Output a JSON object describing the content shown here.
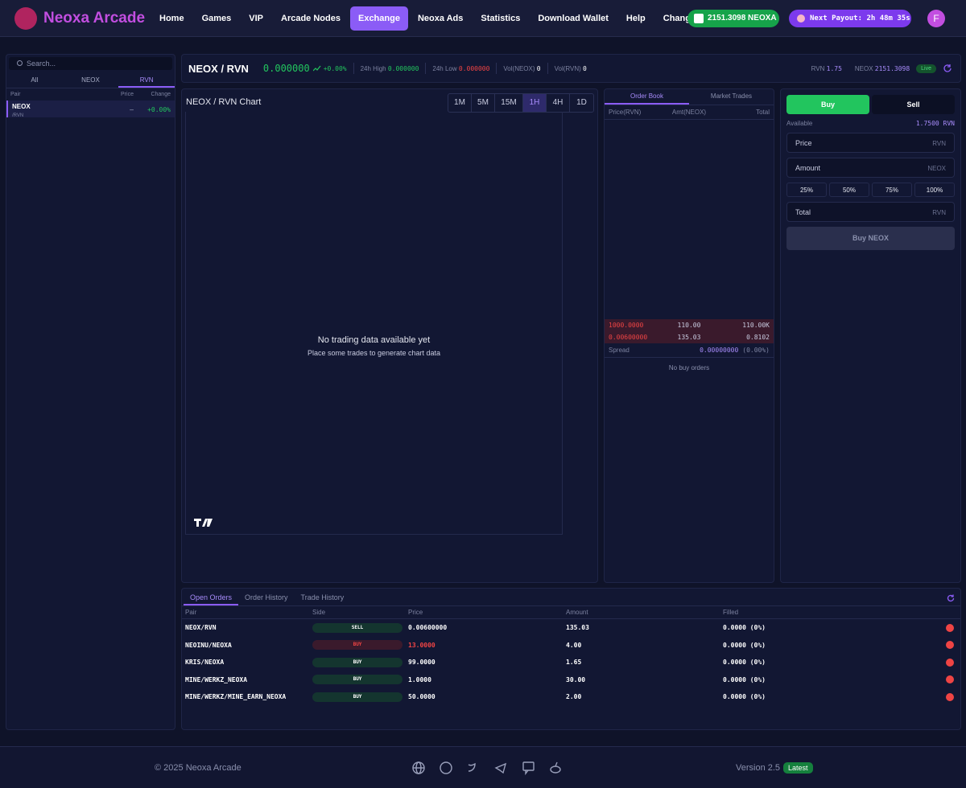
{
  "nav": {
    "brand": "Neoxa Arcade",
    "links": [
      "Home",
      "Games",
      "VIP",
      "Arcade Nodes",
      "Exchange",
      "Neoxa Ads",
      "Statistics",
      "Download Wallet",
      "Help",
      "Changelog"
    ],
    "balance": "2151.3098 NEOXA",
    "payout_label": "Next Payout:",
    "payout_time": "2h 48m 35s",
    "avatar": "F"
  },
  "sidebar": {
    "search_placeholder": "Search...",
    "tabs": [
      "All",
      "NEOX",
      "RVN"
    ],
    "columns": [
      "Pair",
      "Price",
      "Change"
    ],
    "pairs": [
      {
        "base": "NEOX",
        "quote": "/RVN",
        "price": "–",
        "change": "+0.00%"
      }
    ]
  },
  "ticker": {
    "pair": "NEOX / RVN",
    "price": "0.000000",
    "change": "+0.00%",
    "high_label": "24h High",
    "high": "0.000000",
    "low_label": "24h Low",
    "low": "0.000000",
    "vol_neox_label": "Vol(NEOX)",
    "vol_neox": "0",
    "vol_rvn_label": "Vol(RVN)",
    "vol_rvn": "0",
    "rvn_label": "RVN",
    "rvn_balance": "1.75",
    "neox_label": "NEOX",
    "neox_balance": "2151.3098",
    "live": "Live"
  },
  "chart": {
    "title": "NEOX / RVN Chart",
    "timeframes": [
      "1M",
      "5M",
      "15M",
      "1H",
      "4H",
      "1D"
    ],
    "empty_title": "No trading data available yet",
    "empty_subtitle": "Place some trades to generate chart data"
  },
  "orderbook": {
    "tabs": [
      "Order Book",
      "Market Trades"
    ],
    "columns": [
      "Price(RVN)",
      "Amt(NEOX)",
      "Total"
    ],
    "asks": [
      [
        "1000.0000",
        "110.00",
        "110.00K"
      ],
      [
        "0.00600000",
        "135.03",
        "0.8102"
      ]
    ],
    "spread_label": "Spread",
    "spread": "0.00000000",
    "spread_pct": "(0.00%)",
    "no_bids": "No buy orders"
  },
  "trade": {
    "tabs": [
      "Buy",
      "Sell"
    ],
    "available_label": "Available",
    "available": "1.7500 RVN",
    "price_label": "Price",
    "price_unit": "RVN",
    "amount_label": "Amount",
    "amount_unit": "NEOX",
    "percents": [
      "25%",
      "50%",
      "75%",
      "100%"
    ],
    "total_label": "Total",
    "total_unit": "RVN",
    "submit": "Buy NEOX"
  },
  "orders": {
    "tabs": [
      "Open Orders",
      "Order History",
      "Trade History"
    ],
    "columns": [
      "Pair",
      "Side",
      "Price",
      "Amount",
      "Filled"
    ],
    "rows": [
      [
        "NEOX/RVN",
        "SELL",
        "0.00600000",
        "135.03",
        "0.0000 (0%)"
      ],
      [
        "NEOINU/NEOXA",
        "BUY",
        "13.0000",
        "4.00",
        "0.0000 (0%)"
      ],
      [
        "KRIS/NEOXA",
        "BUY",
        "99.0000",
        "1.65",
        "0.0000 (0%)"
      ],
      [
        "MINE/WERKZ_NEOXA",
        "BUY",
        "1.0000",
        "30.00",
        "0.0000 (0%)"
      ],
      [
        "MINE/WERKZ/MINE_EARN_NEOXA",
        "BUY",
        "50.0000",
        "2.00",
        "0.0000 (0%)"
      ]
    ]
  },
  "footer": {
    "copyright": "© 2025 Neoxa Arcade",
    "version": "Version 2.5",
    "badge": "Latest"
  }
}
